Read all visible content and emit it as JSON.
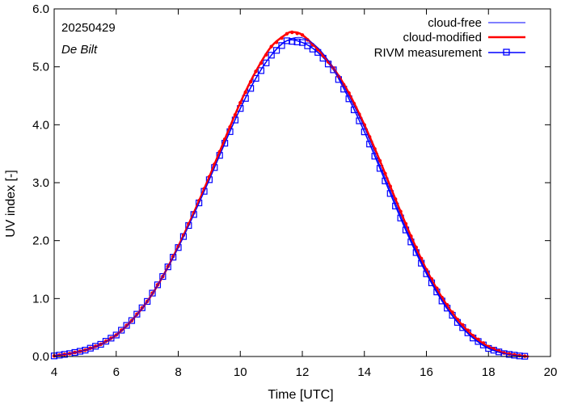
{
  "chart_data": {
    "type": "line",
    "date_label": "20250429",
    "station_label": "De Bilt",
    "xlabel": "Time  [UTC]",
    "ylabel": "UV index  [-]",
    "xlim": [
      4,
      20
    ],
    "ylim": [
      0,
      6
    ],
    "x_ticks": [
      4,
      6,
      8,
      10,
      12,
      14,
      16,
      18,
      20
    ],
    "x_tick_labels": [
      "4",
      "6",
      "8",
      "10",
      "12",
      "14",
      "16",
      "18",
      "20"
    ],
    "y_ticks": [
      0,
      1,
      2,
      3,
      4,
      5,
      6
    ],
    "y_tick_labels": [
      "0.0",
      "1.0",
      "2.0",
      "3.0",
      "4.0",
      "5.0",
      "6.0"
    ],
    "legend_position": "top-right",
    "series": [
      {
        "name": "cloud-free",
        "color": "#0000ff",
        "style": "thin-line",
        "x": [
          4,
          4.5,
          5,
          5.5,
          6,
          6.5,
          7,
          7.5,
          8,
          8.5,
          9,
          9.5,
          10,
          10.5,
          11,
          11.5,
          12,
          12.5,
          13,
          13.5,
          14,
          14.5,
          15,
          15.5,
          16,
          16.5,
          17,
          17.5,
          18,
          18.5,
          19,
          19.3
        ],
        "values": [
          0.01,
          0.05,
          0.11,
          0.21,
          0.37,
          0.62,
          0.95,
          1.38,
          1.88,
          2.45,
          3.05,
          3.68,
          4.28,
          4.8,
          5.2,
          5.45,
          5.5,
          5.33,
          4.98,
          4.5,
          3.95,
          3.3,
          2.65,
          2.02,
          1.46,
          0.98,
          0.6,
          0.33,
          0.15,
          0.05,
          0.01,
          0.0
        ]
      },
      {
        "name": "cloud-modified",
        "color": "#ff0000",
        "style": "thick-line-dots",
        "x": [
          4,
          4.5,
          5,
          5.5,
          6,
          6.5,
          7,
          7.5,
          8,
          8.5,
          9,
          9.5,
          10,
          10.5,
          11,
          11.5,
          11.7,
          12,
          12.5,
          13,
          13.5,
          14,
          14.5,
          15,
          15.5,
          16,
          16.5,
          17,
          17.5,
          18,
          18.5,
          19,
          19.3
        ],
        "values": [
          0.01,
          0.05,
          0.11,
          0.21,
          0.37,
          0.62,
          0.95,
          1.38,
          1.9,
          2.48,
          3.1,
          3.75,
          4.38,
          4.92,
          5.35,
          5.57,
          5.6,
          5.55,
          5.3,
          4.98,
          4.55,
          4.0,
          3.38,
          2.72,
          2.08,
          1.5,
          1.02,
          0.64,
          0.36,
          0.17,
          0.06,
          0.015,
          0.0
        ]
      },
      {
        "name": "RIVM measurement",
        "color": "#0000ff",
        "style": "line-squares",
        "x": [
          4,
          4.5,
          5,
          5.5,
          6,
          6.5,
          7,
          7.5,
          8,
          8.5,
          9,
          9.5,
          10,
          10.5,
          11,
          11.5,
          12,
          12.5,
          13,
          13.5,
          14,
          14.5,
          15,
          15.5,
          16,
          16.5,
          17,
          17.5,
          18,
          18.5,
          19,
          19.3
        ],
        "values": [
          0.01,
          0.05,
          0.11,
          0.21,
          0.37,
          0.62,
          0.95,
          1.38,
          1.88,
          2.45,
          3.05,
          3.68,
          4.28,
          4.8,
          5.2,
          5.45,
          5.42,
          5.25,
          4.95,
          4.45,
          3.88,
          3.25,
          2.6,
          1.98,
          1.43,
          0.96,
          0.59,
          0.32,
          0.14,
          0.05,
          0.01,
          0.0
        ]
      }
    ]
  }
}
